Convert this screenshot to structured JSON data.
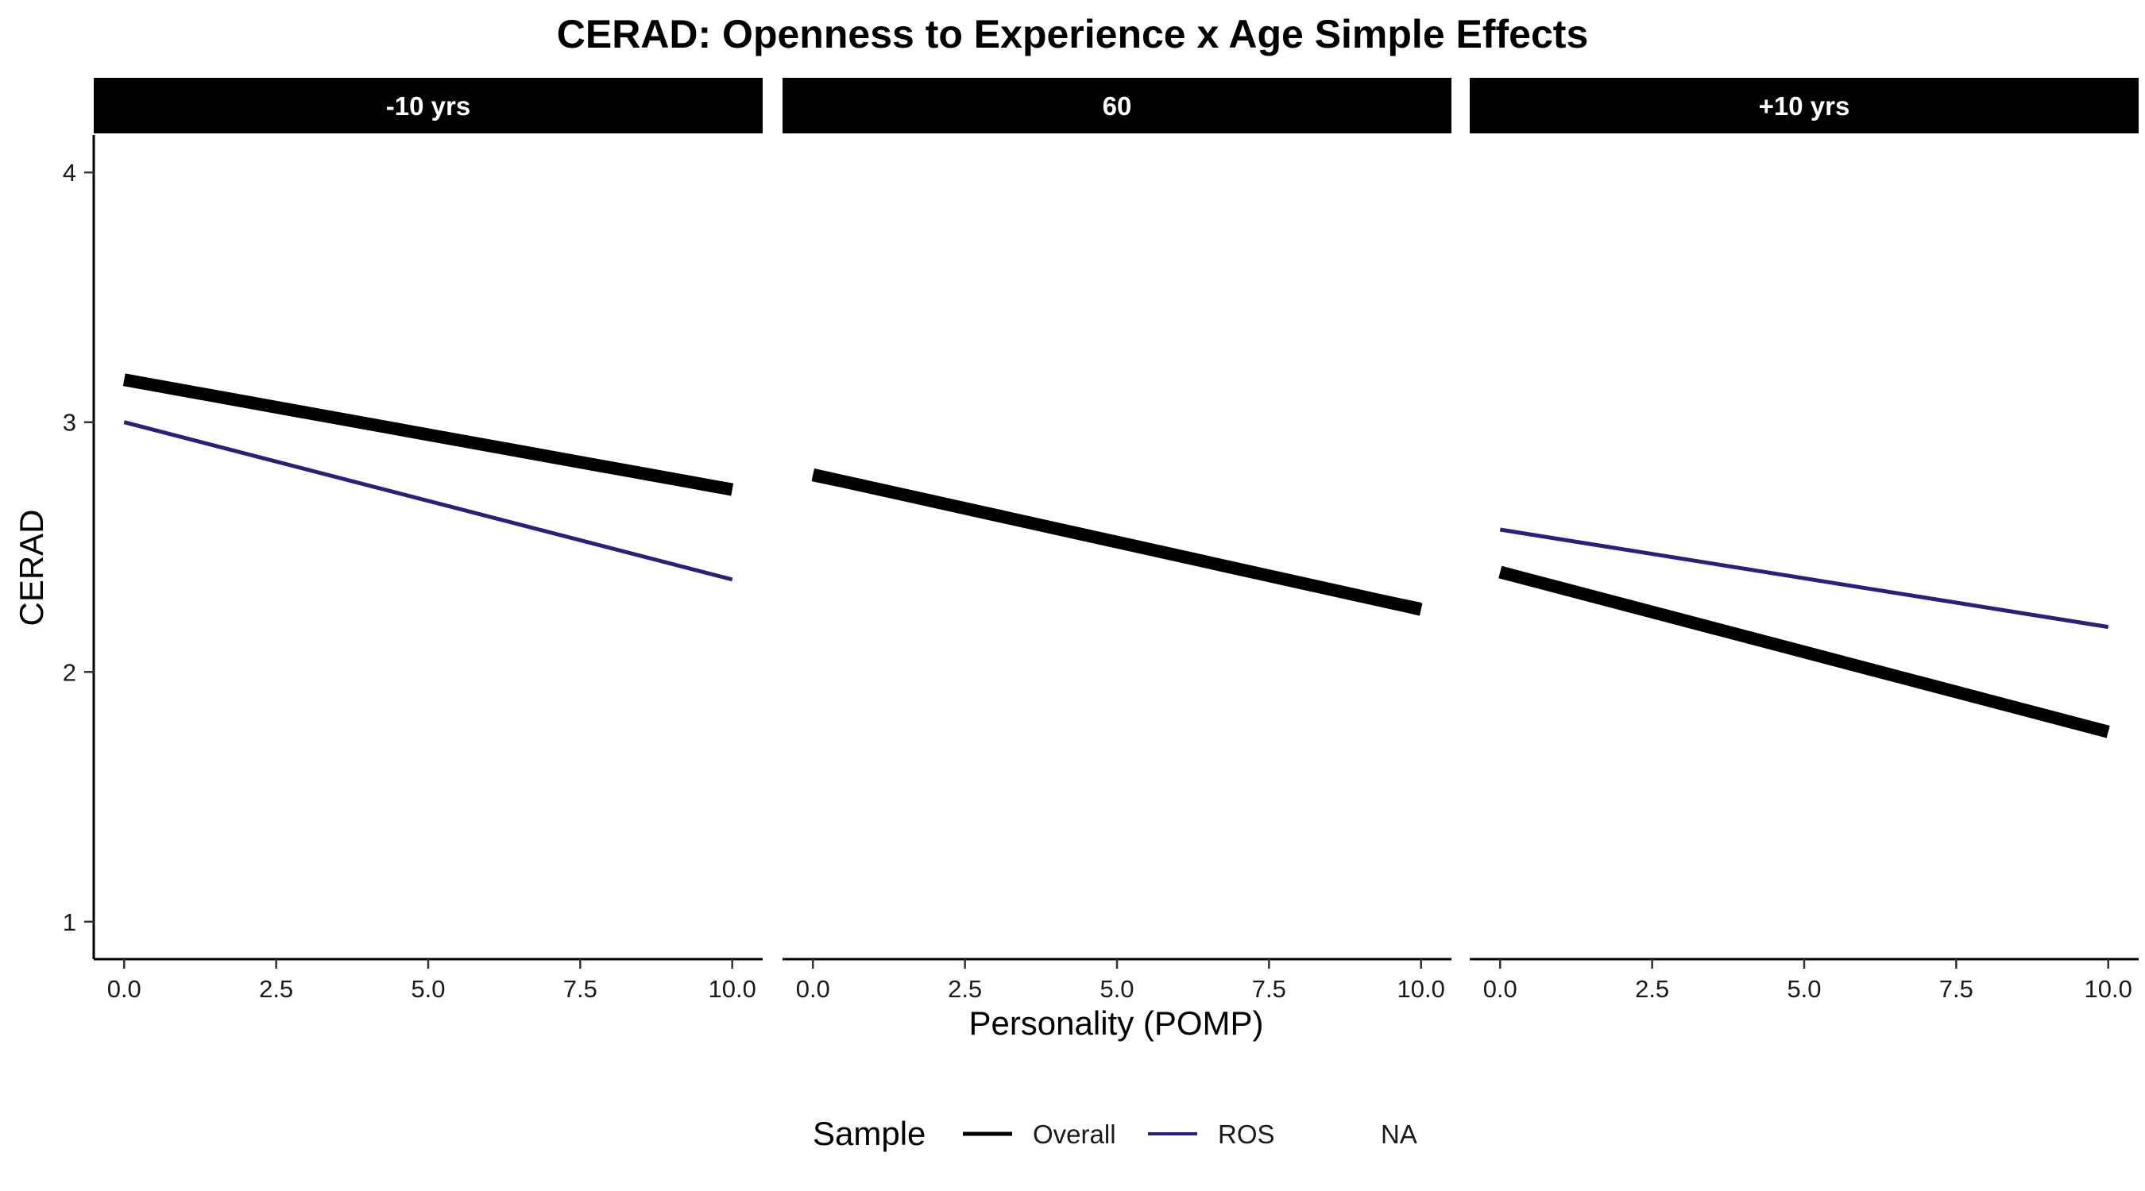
{
  "chart_data": {
    "type": "line",
    "title": "CERAD: Openness to Experience x Age Simple Effects",
    "xlabel": "Personality (POMP)",
    "ylabel": "CERAD",
    "xlim": [
      -0.5,
      10.5
    ],
    "ylim": [
      0.85,
      4.15
    ],
    "x_ticks": [
      0,
      2.5,
      5,
      7.5,
      10
    ],
    "x_tick_labels": [
      "0.0",
      "2.5",
      "5.0",
      "7.5",
      "10.0"
    ],
    "y_ticks": [
      1,
      2,
      3,
      4
    ],
    "y_tick_labels": [
      "1",
      "2",
      "3",
      "4"
    ],
    "grid": false,
    "legend": {
      "title": "Sample",
      "placement": "bottom",
      "entries": [
        {
          "label": "Overall",
          "color": "#000000"
        },
        {
          "label": "ROS",
          "color": "#2d1e7e"
        },
        {
          "label": "NA",
          "color": null
        }
      ]
    },
    "panels": [
      {
        "label": "-10 yrs",
        "series": [
          {
            "name": "Overall",
            "x": [
              0,
              10
            ],
            "y": [
              3.17,
              2.73
            ],
            "color": "#000000"
          },
          {
            "name": "ROS",
            "x": [
              0,
              10
            ],
            "y": [
              3.0,
              2.37
            ],
            "color": "#2d1e7e"
          }
        ]
      },
      {
        "label": "60",
        "series": [
          {
            "name": "Overall",
            "x": [
              0,
              10
            ],
            "y": [
              2.79,
              2.25
            ],
            "color": "#000000"
          },
          {
            "name": "ROS",
            "x": [
              0,
              10
            ],
            "y": [
              2.77,
              2.27
            ],
            "color": "#2d1e7e"
          }
        ]
      },
      {
        "label": "+10 yrs",
        "series": [
          {
            "name": "Overall",
            "x": [
              0,
              10
            ],
            "y": [
              2.4,
              1.76
            ],
            "color": "#000000"
          },
          {
            "name": "ROS",
            "x": [
              0,
              10
            ],
            "y": [
              2.57,
              2.18
            ],
            "color": "#2d1e7e"
          }
        ]
      }
    ]
  }
}
